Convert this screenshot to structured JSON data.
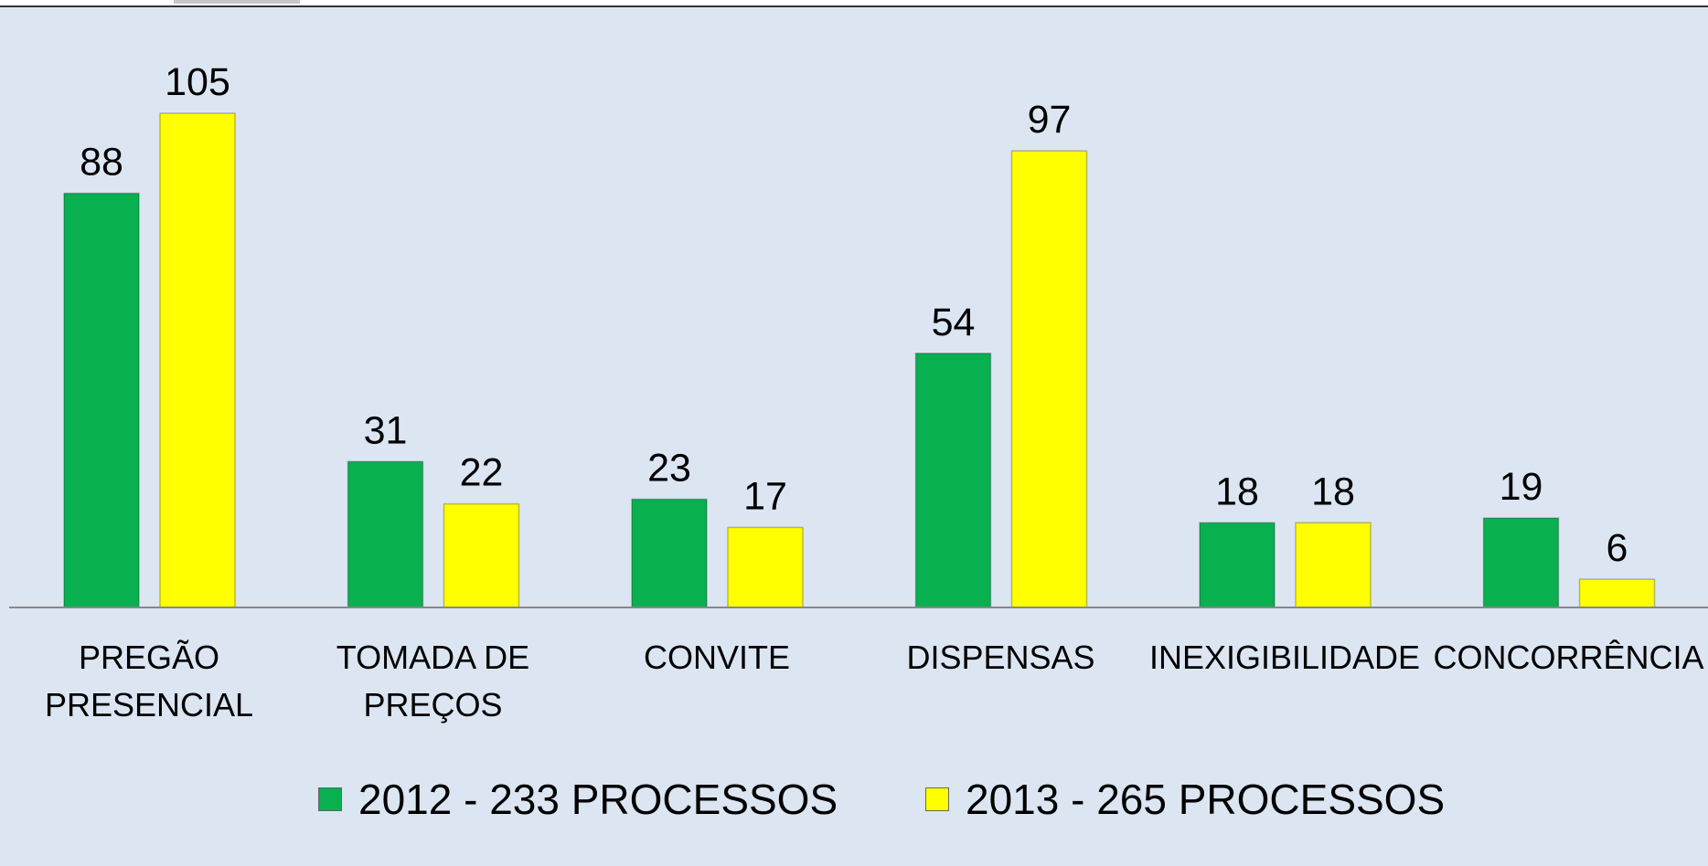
{
  "chart_data": {
    "type": "bar",
    "categories": [
      "PREGÃO\nPRESENCIAL",
      "TOMADA DE\nPREÇOS",
      "CONVITE",
      "DISPENSAS",
      "INEXIGIBILIDADE",
      "CONCORRÊNCIA"
    ],
    "series": [
      {
        "name": "2012 - 233 PROCESSOS",
        "color": "#08b050",
        "values": [
          88,
          31,
          23,
          54,
          18,
          19
        ]
      },
      {
        "name": "2013 - 265 PROCESSOS",
        "color": "#ffff00",
        "values": [
          105,
          22,
          17,
          97,
          18,
          6
        ]
      }
    ],
    "legend": "bottom"
  }
}
